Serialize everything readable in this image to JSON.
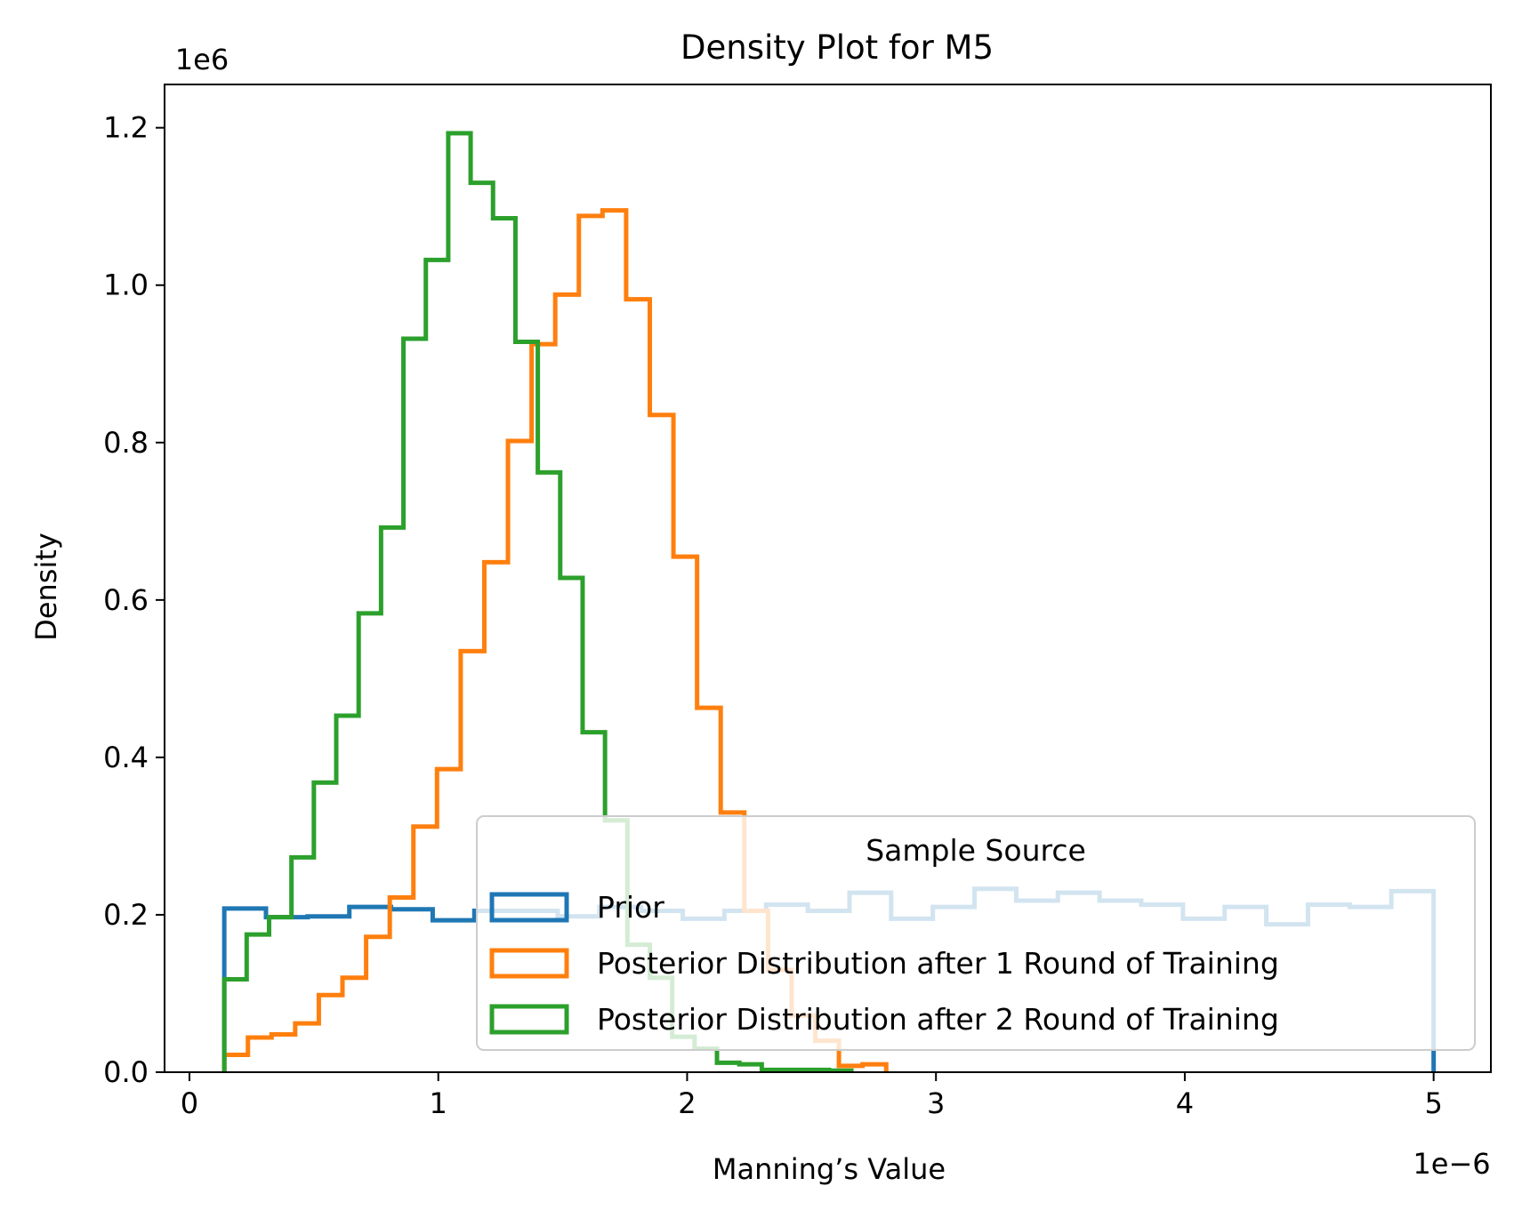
{
  "chart_data": {
    "type": "histogram-step",
    "title": "Density Plot for M5",
    "xlabel": "Manning’s Value",
    "ylabel": "Density",
    "x_offset_text": "1e−6",
    "y_offset_text": "1e6",
    "x_scale": 1e-06,
    "y_scale": 1000000.0,
    "xlim": [
      -0.1,
      5.23
    ],
    "ylim": [
      0,
      1.255
    ],
    "xticks": [
      0,
      1,
      2,
      3,
      4,
      5
    ],
    "xtick_labels": [
      "0",
      "1",
      "2",
      "3",
      "4",
      "5"
    ],
    "yticks": [
      0.0,
      0.2,
      0.4,
      0.6,
      0.8,
      1.0,
      1.2
    ],
    "ytick_labels": [
      "0.0",
      "0.2",
      "0.4",
      "0.6",
      "0.8",
      "1.0",
      "1.2"
    ],
    "grid": false,
    "legend": {
      "title": "Sample Source",
      "placement": "lower right",
      "entries": [
        "Prior",
        "Posterior Distribution after 1 Round of Training",
        "Posterior Distribution after 2 Round of Training"
      ]
    },
    "series": [
      {
        "name": "Prior",
        "color": "#1f77b4",
        "edges": [
          0.14,
          0.3075,
          0.475,
          0.6425,
          0.81,
          0.9775,
          1.145,
          1.3125,
          1.48,
          1.6475,
          1.815,
          1.9825,
          2.15,
          2.3175,
          2.485,
          2.6525,
          2.82,
          2.9875,
          3.155,
          3.3225,
          3.49,
          3.6575,
          3.825,
          3.9925,
          4.16,
          4.3275,
          4.495,
          4.6625,
          4.83,
          5.0
        ],
        "values": [
          0.208,
          0.197,
          0.198,
          0.21,
          0.207,
          0.193,
          0.205,
          0.205,
          0.198,
          0.21,
          0.205,
          0.195,
          0.205,
          0.213,
          0.205,
          0.228,
          0.195,
          0.21,
          0.233,
          0.218,
          0.228,
          0.218,
          0.213,
          0.195,
          0.21,
          0.188,
          0.213,
          0.21,
          0.23
        ]
      },
      {
        "name": "Posterior Distribution after 1 Round of Training",
        "color": "#ff7f0e",
        "edges": [
          0.14,
          0.235,
          0.33,
          0.425,
          0.52,
          0.615,
          0.71,
          0.805,
          0.9,
          0.995,
          1.09,
          1.185,
          1.28,
          1.375,
          1.47,
          1.565,
          1.66,
          1.755,
          1.85,
          1.945,
          2.04,
          2.135,
          2.23,
          2.325,
          2.42,
          2.515,
          2.61,
          2.705,
          2.8
        ],
        "values": [
          0.022,
          0.044,
          0.048,
          0.062,
          0.098,
          0.12,
          0.172,
          0.222,
          0.312,
          0.385,
          0.535,
          0.648,
          0.802,
          0.925,
          0.988,
          1.088,
          1.095,
          0.982,
          0.835,
          0.655,
          0.463,
          0.33,
          0.205,
          0.13,
          0.072,
          0.04,
          0.008,
          0.01
        ]
      },
      {
        "name": "Posterior Distribution after 2 Round of Training",
        "color": "#2ca02c",
        "edges": [
          0.14,
          0.23,
          0.32,
          0.41,
          0.5,
          0.59,
          0.68,
          0.77,
          0.86,
          0.95,
          1.04,
          1.13,
          1.22,
          1.31,
          1.4,
          1.49,
          1.58,
          1.67,
          1.76,
          1.85,
          1.94,
          2.03,
          2.12,
          2.21,
          2.3,
          2.39,
          2.48,
          2.57,
          2.66
        ],
        "values": [
          0.118,
          0.175,
          0.197,
          0.273,
          0.368,
          0.453,
          0.583,
          0.692,
          0.932,
          1.032,
          1.193,
          1.13,
          1.085,
          0.928,
          0.762,
          0.628,
          0.432,
          0.32,
          0.162,
          0.12,
          0.045,
          0.03,
          0.012,
          0.01,
          0.003,
          0.003,
          0.003,
          0.002
        ]
      }
    ]
  }
}
